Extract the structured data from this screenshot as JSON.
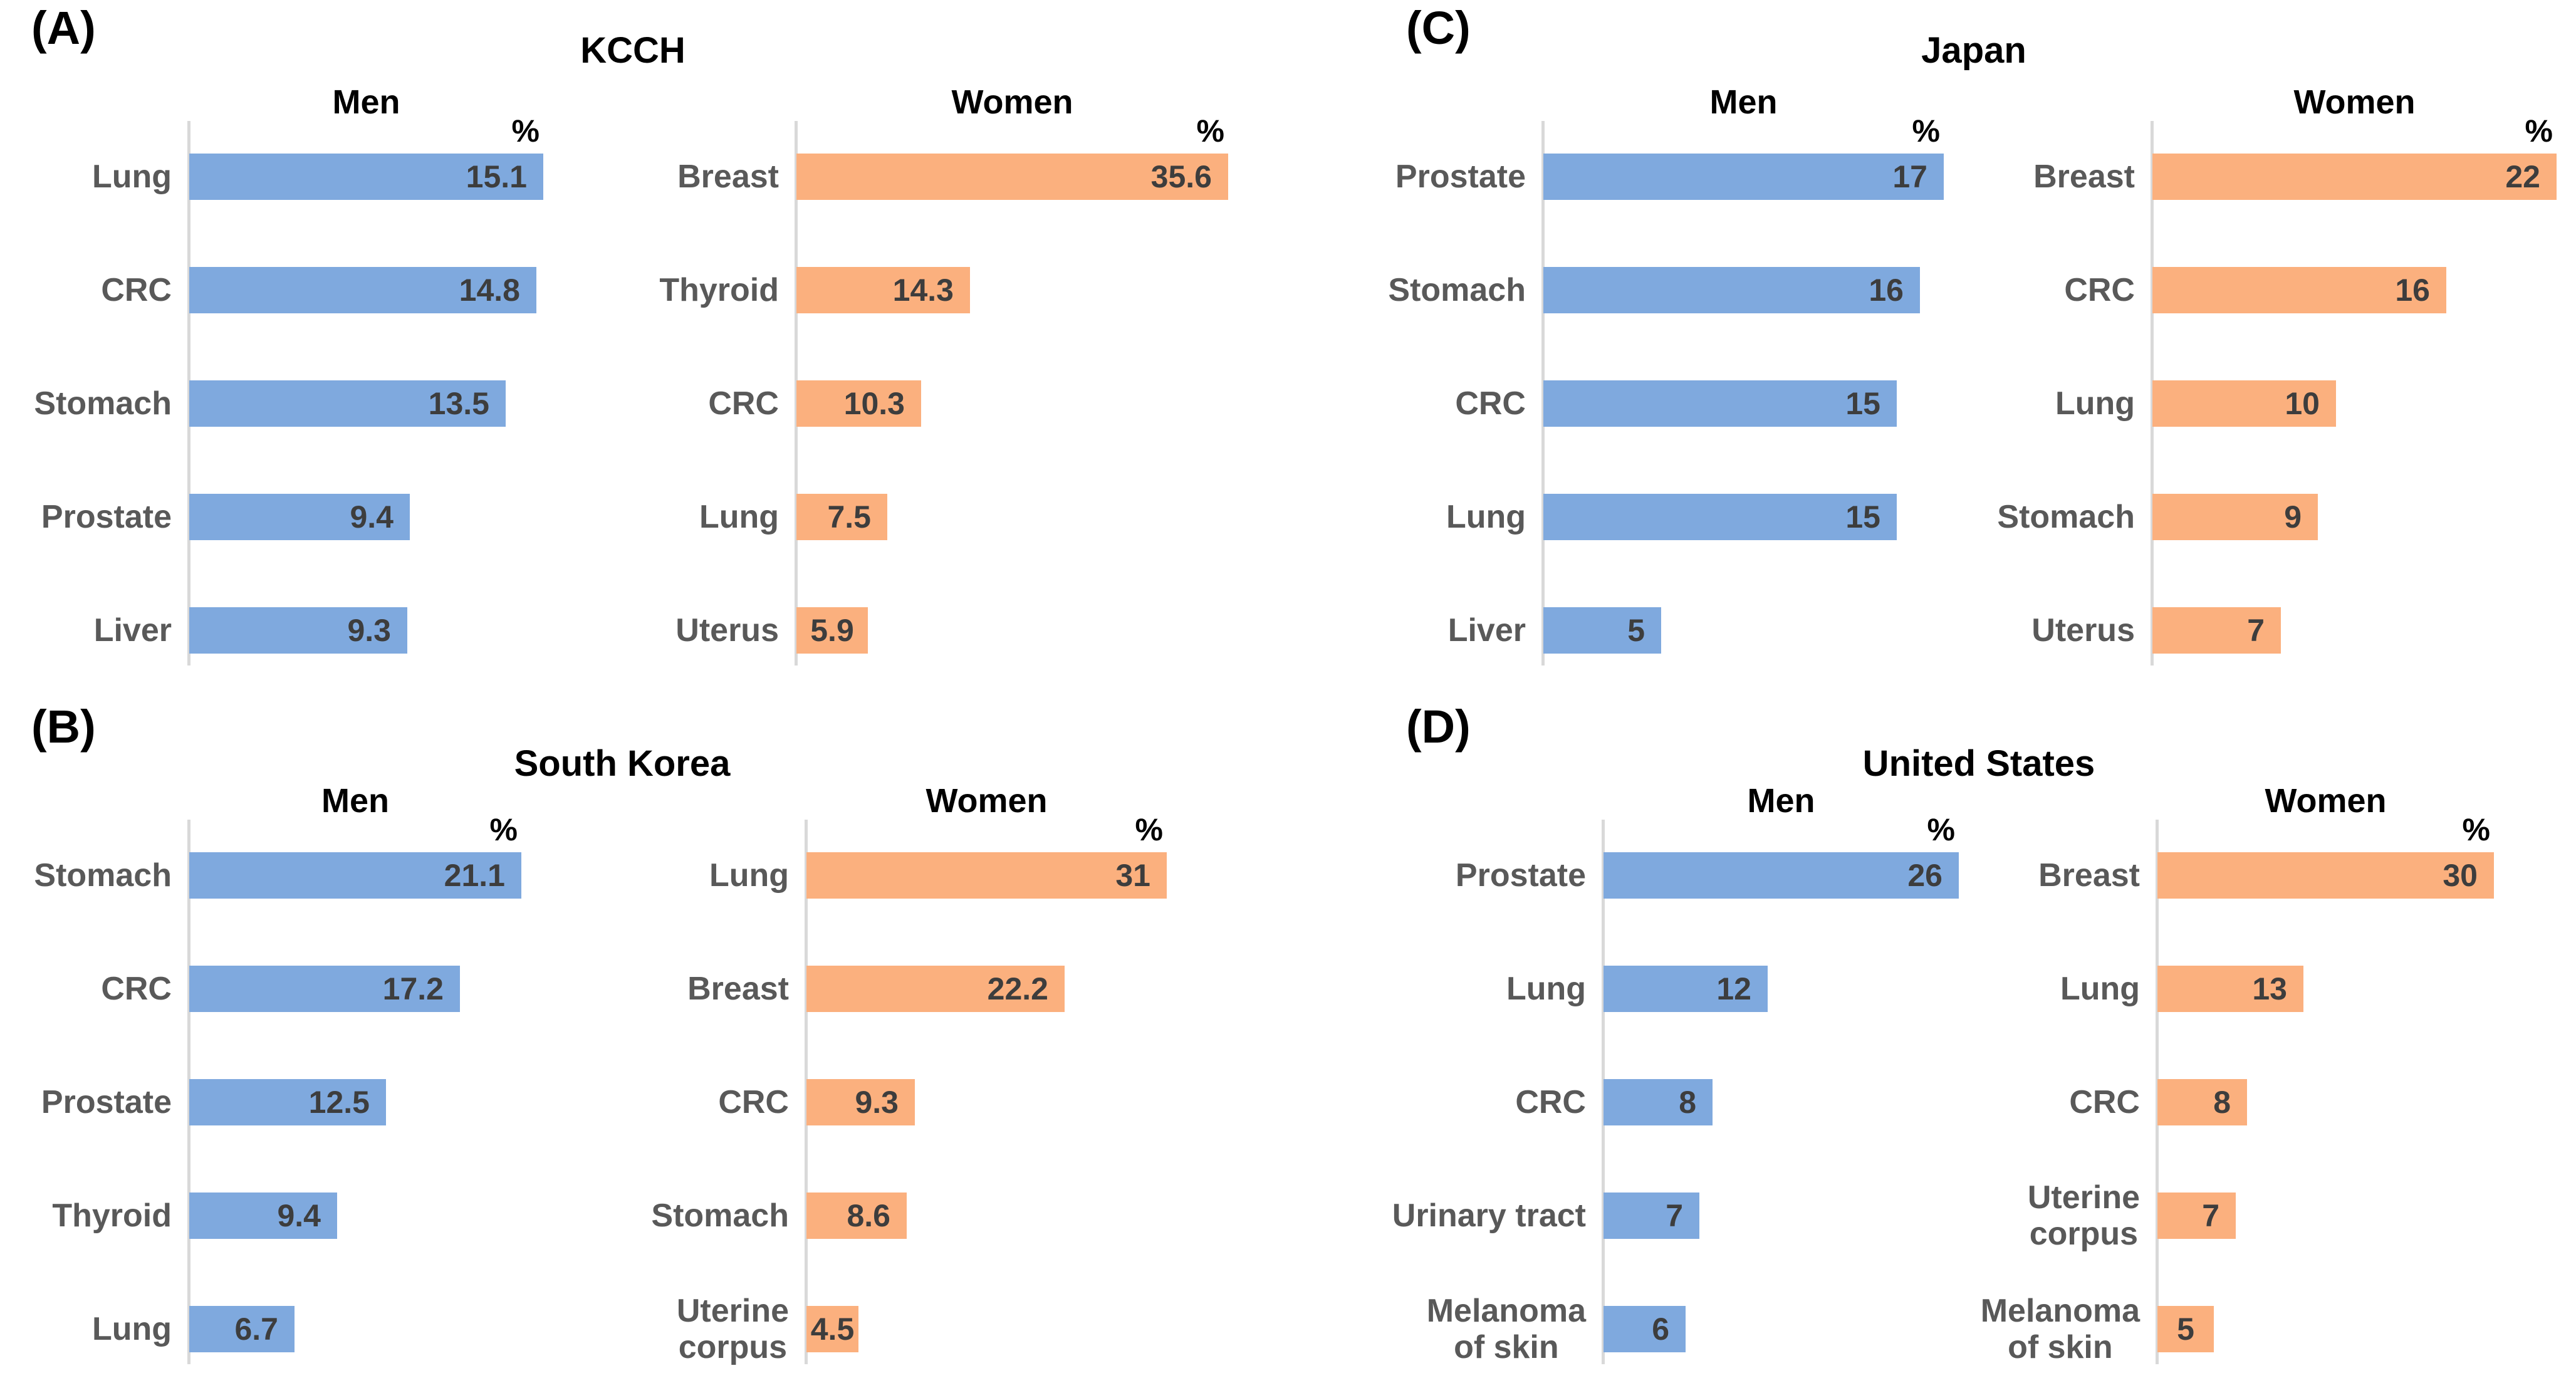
{
  "figure": {
    "colors": {
      "men_bar": "#7FA9DE",
      "women_bar": "#FBB07E",
      "category_label": "#595959",
      "value_label": "#3D3D3D",
      "axis_line": "#D9D9D9",
      "title_text": "#000000"
    },
    "panels": [
      {
        "letter": "(A)",
        "title": "KCCH",
        "charts": [
          {
            "group": "Men",
            "percent_label": "%",
            "series": "men",
            "rows": [
              {
                "label": "Lung",
                "value": 15.1
              },
              {
                "label": "CRC",
                "value": 14.8
              },
              {
                "label": "Stomach",
                "value": 13.5
              },
              {
                "label": "Prostate",
                "value": 9.4
              },
              {
                "label": "Liver",
                "value": 9.3
              }
            ]
          },
          {
            "group": "Women",
            "percent_label": "%",
            "series": "women",
            "rows": [
              {
                "label": "Breast",
                "value": 35.6
              },
              {
                "label": "Thyroid",
                "value": 14.3
              },
              {
                "label": "CRC",
                "value": 10.3
              },
              {
                "label": "Lung",
                "value": 7.5
              },
              {
                "label": "Uterus",
                "value": 5.9
              }
            ]
          }
        ]
      },
      {
        "letter": "(B)",
        "title": "South Korea",
        "charts": [
          {
            "group": "Men",
            "percent_label": "%",
            "series": "men",
            "rows": [
              {
                "label": "Stomach",
                "value": 21.1
              },
              {
                "label": "CRC",
                "value": 17.2
              },
              {
                "label": "Prostate",
                "value": 12.5
              },
              {
                "label": "Thyroid",
                "value": 9.4
              },
              {
                "label": "Lung",
                "value": 6.7
              }
            ]
          },
          {
            "group": "Women",
            "percent_label": "%",
            "series": "women",
            "rows": [
              {
                "label": "Lung",
                "value": 31
              },
              {
                "label": "Breast",
                "value": 22.2
              },
              {
                "label": "CRC",
                "value": 9.3
              },
              {
                "label": "Stomach",
                "value": 8.6
              },
              {
                "label": "Uterine corpus",
                "label_lines": [
                  "Uterine",
                  "corpus"
                ],
                "value": 4.5
              }
            ]
          }
        ]
      },
      {
        "letter": "(C)",
        "title": "Japan",
        "charts": [
          {
            "group": "Men",
            "percent_label": "%",
            "series": "men",
            "rows": [
              {
                "label": "Prostate",
                "value": 17
              },
              {
                "label": "Stomach",
                "value": 16
              },
              {
                "label": "CRC",
                "value": 15
              },
              {
                "label": "Lung",
                "value": 15
              },
              {
                "label": "Liver",
                "value": 5
              }
            ]
          },
          {
            "group": "Women",
            "percent_label": "%",
            "series": "women",
            "rows": [
              {
                "label": "Breast",
                "value": 22
              },
              {
                "label": "CRC",
                "value": 16
              },
              {
                "label": "Lung",
                "value": 10
              },
              {
                "label": "Stomach",
                "value": 9
              },
              {
                "label": "Uterus",
                "value": 7
              }
            ]
          }
        ]
      },
      {
        "letter": "(D)",
        "title": "United States",
        "charts": [
          {
            "group": "Men",
            "percent_label": "%",
            "series": "men",
            "rows": [
              {
                "label": "Prostate",
                "value": 26
              },
              {
                "label": "Lung",
                "value": 12
              },
              {
                "label": "CRC",
                "value": 8
              },
              {
                "label": "Urinary tract",
                "value": 7
              },
              {
                "label": "Melanoma of skin",
                "label_lines": [
                  "Melanoma",
                  "of skin"
                ],
                "value": 6
              }
            ]
          },
          {
            "group": "Women",
            "percent_label": "%",
            "series": "women",
            "rows": [
              {
                "label": "Breast",
                "value": 30
              },
              {
                "label": "Lung",
                "value": 13
              },
              {
                "label": "CRC",
                "value": 8
              },
              {
                "label": "Uterine corpus",
                "label_lines": [
                  "Uterine",
                  "corpus"
                ],
                "value": 7
              },
              {
                "label": "Melanoma of skin",
                "label_lines": [
                  "Melanoma",
                  "of skin"
                ],
                "value": 5
              }
            ]
          }
        ]
      }
    ]
  },
  "chart_data": [
    {
      "type": "bar",
      "orientation": "horizontal",
      "panel": "(A)",
      "title": "KCCH",
      "group": "Men",
      "unit": "%",
      "categories": [
        "Lung",
        "CRC",
        "Stomach",
        "Prostate",
        "Liver"
      ],
      "values": [
        15.1,
        14.8,
        13.5,
        9.4,
        9.3
      ],
      "xlim": [
        0,
        15.1
      ],
      "grid": false,
      "legend": "none",
      "bar_color": "#7FA9DE"
    },
    {
      "type": "bar",
      "orientation": "horizontal",
      "panel": "(A)",
      "title": "KCCH",
      "group": "Women",
      "unit": "%",
      "categories": [
        "Breast",
        "Thyroid",
        "CRC",
        "Lung",
        "Uterus"
      ],
      "values": [
        35.6,
        14.3,
        10.3,
        7.5,
        5.9
      ],
      "xlim": [
        0,
        35.6
      ],
      "grid": false,
      "legend": "none",
      "bar_color": "#FBB07E"
    },
    {
      "type": "bar",
      "orientation": "horizontal",
      "panel": "(B)",
      "title": "South Korea",
      "group": "Men",
      "unit": "%",
      "categories": [
        "Stomach",
        "CRC",
        "Prostate",
        "Thyroid",
        "Lung"
      ],
      "values": [
        21.1,
        17.2,
        12.5,
        9.4,
        6.7
      ],
      "xlim": [
        0,
        21.1
      ],
      "grid": false,
      "legend": "none",
      "bar_color": "#7FA9DE"
    },
    {
      "type": "bar",
      "orientation": "horizontal",
      "panel": "(B)",
      "title": "South Korea",
      "group": "Women",
      "unit": "%",
      "categories": [
        "Lung",
        "Breast",
        "CRC",
        "Stomach",
        "Uterine corpus"
      ],
      "values": [
        31,
        22.2,
        9.3,
        8.6,
        4.5
      ],
      "xlim": [
        0,
        31
      ],
      "grid": false,
      "legend": "none",
      "bar_color": "#FBB07E"
    },
    {
      "type": "bar",
      "orientation": "horizontal",
      "panel": "(C)",
      "title": "Japan",
      "group": "Men",
      "unit": "%",
      "categories": [
        "Prostate",
        "Stomach",
        "CRC",
        "Lung",
        "Liver"
      ],
      "values": [
        17,
        16,
        15,
        15,
        5
      ],
      "xlim": [
        0,
        17
      ],
      "grid": false,
      "legend": "none",
      "bar_color": "#7FA9DE"
    },
    {
      "type": "bar",
      "orientation": "horizontal",
      "panel": "(C)",
      "title": "Japan",
      "group": "Women",
      "unit": "%",
      "categories": [
        "Breast",
        "CRC",
        "Lung",
        "Stomach",
        "Uterus"
      ],
      "values": [
        22,
        16,
        10,
        9,
        7
      ],
      "xlim": [
        0,
        22
      ],
      "grid": false,
      "legend": "none",
      "bar_color": "#FBB07E"
    },
    {
      "type": "bar",
      "orientation": "horizontal",
      "panel": "(D)",
      "title": "United States",
      "group": "Men",
      "unit": "%",
      "categories": [
        "Prostate",
        "Lung",
        "CRC",
        "Urinary tract",
        "Melanoma of skin"
      ],
      "values": [
        26,
        12,
        8,
        7,
        6
      ],
      "xlim": [
        0,
        26
      ],
      "grid": false,
      "legend": "none",
      "bar_color": "#7FA9DE"
    },
    {
      "type": "bar",
      "orientation": "horizontal",
      "panel": "(D)",
      "title": "United States",
      "group": "Women",
      "unit": "%",
      "categories": [
        "Breast",
        "Lung",
        "CRC",
        "Uterine corpus",
        "Melanoma of skin"
      ],
      "values": [
        30,
        13,
        8,
        7,
        5
      ],
      "xlim": [
        0,
        30
      ],
      "grid": false,
      "legend": "none",
      "bar_color": "#FBB07E"
    }
  ]
}
